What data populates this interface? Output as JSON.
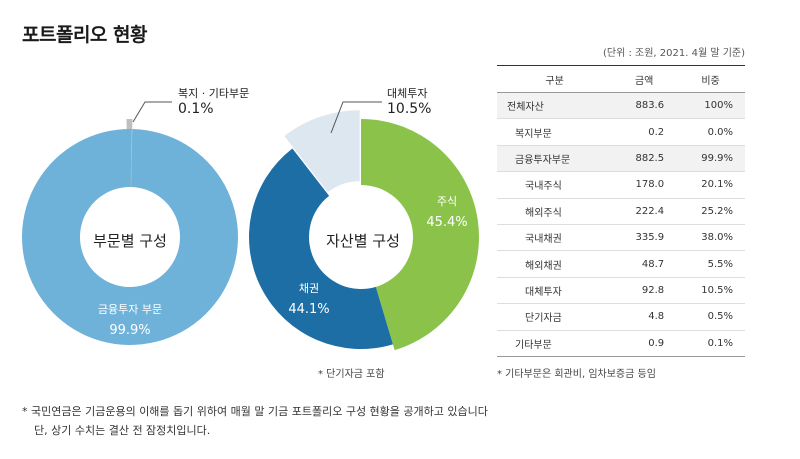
{
  "title": "포트폴리오 현황",
  "unit_note": "(단위 : 조원, 2021. 4월 말 기준)",
  "colors": {
    "financial": "#6fb2d9",
    "welfare": "#bfbfbf",
    "stocks": "#8bc34a",
    "bonds": "#1c6ea4",
    "alternative": "#dde7ef"
  },
  "chart_data": [
    {
      "type": "pie",
      "title": "부문별 구성",
      "slices": [
        {
          "label": "금융투자 부문",
          "value": 99.9,
          "display": "99.9%"
        },
        {
          "label": "복지 · 기타부문",
          "value": 0.1,
          "display": "0.1%"
        }
      ]
    },
    {
      "type": "pie",
      "title": "자산별 구성",
      "slices": [
        {
          "label": "주식",
          "value": 45.4,
          "display": "45.4%"
        },
        {
          "label": "채권",
          "value": 44.1,
          "display": "44.1%"
        },
        {
          "label": "대체투자",
          "value": 10.5,
          "display": "10.5%"
        }
      ],
      "footnote": "* 단기자금 포함"
    }
  ],
  "table": {
    "headers": [
      "구분",
      "금액",
      "비중"
    ],
    "rows": [
      {
        "name": "전체자산",
        "amount": "883.6",
        "share": "100%",
        "level": 0,
        "shaded": true
      },
      {
        "name": "복지부문",
        "amount": "0.2",
        "share": "0.0%",
        "level": 1,
        "shaded": false
      },
      {
        "name": "금융투자부문",
        "amount": "882.5",
        "share": "99.9%",
        "level": 1,
        "shaded": true
      },
      {
        "name": "국내주식",
        "amount": "178.0",
        "share": "20.1%",
        "level": 2,
        "shaded": false
      },
      {
        "name": "해외주식",
        "amount": "222.4",
        "share": "25.2%",
        "level": 2,
        "shaded": false
      },
      {
        "name": "국내채권",
        "amount": "335.9",
        "share": "38.0%",
        "level": 2,
        "shaded": false
      },
      {
        "name": "해외채권",
        "amount": "48.7",
        "share": "5.5%",
        "level": 2,
        "shaded": false
      },
      {
        "name": "대체투자",
        "amount": "92.8",
        "share": "10.5%",
        "level": 2,
        "shaded": false
      },
      {
        "name": "단기자금",
        "amount": "4.8",
        "share": "0.5%",
        "level": 2,
        "shaded": false
      },
      {
        "name": "기타부문",
        "amount": "0.9",
        "share": "0.1%",
        "level": 1,
        "shaded": false
      }
    ],
    "footnote": "* 기타부문은 회관비, 임차보증금 등임"
  },
  "bottom_note": {
    "line1": "* 국민연금은 기금운용의 이해를 돕기 위하여 매월 말 기금 포트폴리오 구성 현황을 공개하고 있습니다",
    "line2": "단, 상기 수치는 결산 전 잠정치입니다."
  }
}
